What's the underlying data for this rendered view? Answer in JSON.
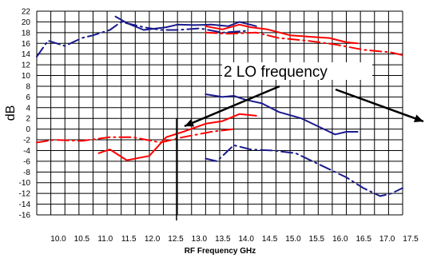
{
  "chart_data": {
    "type": "line",
    "title": "",
    "xlabel": "RF Frequency GHz",
    "ylabel": "dB",
    "xlim": [
      10.0,
      17.5
    ],
    "ylim": [
      -16,
      22
    ],
    "x_ticks": [
      "10.0",
      "10.5",
      "11.0",
      "11.5",
      "12.0",
      "12.5",
      "13.0",
      "13.5",
      "14.0",
      "14.5",
      "15.0",
      "15.5",
      "16.0",
      "16.5",
      "17.0",
      "17.5"
    ],
    "y_ticks": [
      "22",
      "20",
      "18",
      "16",
      "14",
      "12",
      "10",
      "8",
      "6",
      "4",
      "2",
      "0",
      "-2",
      "-4",
      "-6",
      "-8",
      "-10",
      "-12",
      "-14",
      "-16"
    ],
    "grid": true,
    "annotation": "2 LO frequency",
    "colors": {
      "blue": "#1a1a8c",
      "red": "#ff0000",
      "grid": "#000000"
    },
    "series": [
      {
        "color": "blue",
        "style": "dashdot",
        "x": [
          10.5,
          10.7,
          11.0,
          11.3,
          11.5,
          11.8,
          12.0,
          12.4,
          12.7,
          13.0,
          13.4,
          13.8,
          14.2
        ],
        "y": [
          13.5,
          16.5,
          15.5,
          17.0,
          17.5,
          18.5,
          20.0,
          19.0,
          18.5,
          18.5,
          18.8,
          18.0,
          18.3
        ]
      },
      {
        "color": "blue",
        "style": "solid",
        "x": [
          11.9,
          12.1,
          12.4,
          12.8,
          13.0,
          13.3,
          13.6,
          13.9,
          14.1,
          14.4
        ],
        "y": [
          21.0,
          19.8,
          18.5,
          19.0,
          19.5,
          19.4,
          19.5,
          19.2,
          20.0,
          19.2
        ]
      },
      {
        "color": "red",
        "style": "solid",
        "x": [
          13.5,
          13.8,
          14.1,
          14.3,
          14.6,
          15.0,
          15.4,
          15.7,
          16.0,
          16.2
        ],
        "y": [
          19.2,
          18.6,
          19.5,
          19.0,
          18.6,
          17.5,
          17.2,
          17.0,
          16.2,
          16.0
        ]
      },
      {
        "color": "red",
        "style": "dashdot",
        "x": [
          13.5,
          13.9,
          14.4,
          14.8,
          15.3,
          15.8,
          16.3,
          16.8,
          17.0
        ],
        "y": [
          18.0,
          17.8,
          18.0,
          17.0,
          16.5,
          15.8,
          14.8,
          14.3,
          13.8
        ]
      },
      {
        "color": "blue",
        "style": "solid",
        "x": [
          13.5,
          13.8,
          14.0,
          14.2,
          14.5,
          14.8,
          15.2,
          15.6,
          15.8,
          16.0,
          16.2
        ],
        "y": [
          6.5,
          6.0,
          6.2,
          5.5,
          4.8,
          3.2,
          2.0,
          0.0,
          -1.0,
          -0.5,
          -0.5
        ]
      },
      {
        "color": "blue",
        "style": "dashdot",
        "x": [
          13.5,
          13.7,
          14.0,
          14.3,
          14.7,
          15.1,
          15.5,
          16.0,
          16.3,
          16.6,
          16.8,
          17.0
        ],
        "y": [
          -5.5,
          -6.0,
          -3.0,
          -3.8,
          -4.0,
          -4.5,
          -6.5,
          -9.0,
          -11.0,
          -12.5,
          -12.0,
          -11.0
        ]
      },
      {
        "color": "red",
        "style": "dashdot",
        "x": [
          10.5,
          10.8,
          11.3,
          11.8,
          12.2,
          12.7,
          13.1,
          13.6,
          14.0
        ],
        "y": [
          -2.5,
          -2.0,
          -2.2,
          -1.5,
          -1.5,
          -2.5,
          -1.5,
          -0.5,
          0.0
        ]
      },
      {
        "color": "red",
        "style": "solid",
        "x": [
          11.6,
          11.8,
          12.1,
          12.5,
          12.8,
          13.1,
          13.5,
          13.8,
          14.1,
          14.4
        ],
        "y": [
          -4.5,
          -3.8,
          -5.8,
          -5.0,
          -1.5,
          -0.5,
          1.0,
          1.5,
          2.8,
          2.5
        ]
      }
    ]
  }
}
